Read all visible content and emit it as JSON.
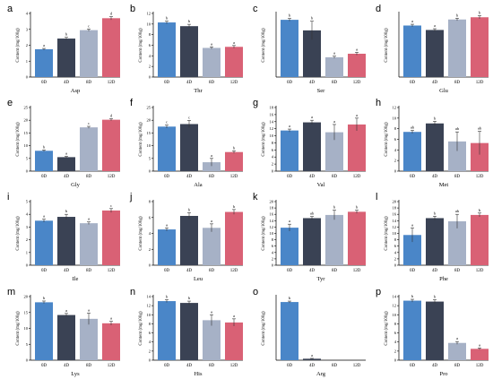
{
  "figure": {
    "colors": {
      "0D": "#4a86c8",
      "4D": "#3a4254",
      "8D": "#a6b1c6",
      "12D": "#d96175",
      "axis": "#000000",
      "errorbar": "#333333"
    }
  },
  "chart_data": [
    {
      "panel": "a",
      "type": "bar",
      "categories": [
        "0D",
        "4D",
        "8D",
        "12D"
      ],
      "values": [
        1.75,
        2.42,
        2.95,
        3.7
      ],
      "errors": [
        0.05,
        0.08,
        0.07,
        0.1
      ],
      "labels": [
        "a",
        "b",
        "c",
        "d"
      ],
      "xlabel": "Asp",
      "ylabel": "Content (mg/100g)",
      "ylim": [
        0,
        4
      ],
      "yticks": [
        "0",
        "1",
        "2",
        "3",
        "4"
      ]
    },
    {
      "panel": "b",
      "type": "bar",
      "categories": [
        "0D",
        "4D",
        "8D",
        "12D"
      ],
      "values": [
        10.3,
        9.6,
        5.5,
        5.7
      ],
      "errors": [
        0.25,
        0.35,
        0.2,
        0.25
      ],
      "labels": [
        "b",
        "b",
        "a",
        "a"
      ],
      "xlabel": "Thr",
      "ylabel": "Content (mg/100g)",
      "ylim": [
        0,
        12
      ],
      "yticks": [
        "0",
        "2",
        "4",
        "6",
        "8",
        "10",
        "12"
      ]
    },
    {
      "panel": "c",
      "type": "bar",
      "categories": [
        "0D",
        "4D",
        "8D",
        "12D"
      ],
      "values": [
        8.1,
        6.6,
        2.8,
        3.3
      ],
      "errors": [
        0.2,
        1.3,
        0.15,
        0.2
      ],
      "labels": [
        "b",
        "b",
        "a",
        "a"
      ],
      "xlabel": "Ser",
      "ylabel": "Content (mg/100g)",
      "ylim": [
        0,
        9
      ],
      "yticks": []
    },
    {
      "panel": "d",
      "type": "bar",
      "categories": [
        "0D",
        "4D",
        "8D",
        "12D"
      ],
      "values": [
        16.2,
        14.8,
        18.1,
        18.8
      ],
      "errors": [
        0.4,
        0.4,
        0.4,
        0.5
      ],
      "labels": [
        "a",
        "a",
        "b",
        "b"
      ],
      "xlabel": "Glu",
      "ylabel": "Content (mg/100g)",
      "ylim": [
        0,
        20
      ],
      "yticks": []
    },
    {
      "panel": "e",
      "type": "bar",
      "categories": [
        "0D",
        "4D",
        "8D",
        "12D"
      ],
      "values": [
        8.0,
        5.5,
        17.2,
        20.2
      ],
      "errors": [
        0.3,
        0.3,
        0.4,
        0.4
      ],
      "labels": [
        "b",
        "a",
        "c",
        "d"
      ],
      "xlabel": "Gly",
      "ylabel": "Content (mg/100g)",
      "ylim": [
        0,
        25
      ],
      "yticks": [
        "0",
        "5",
        "10",
        "15",
        "20",
        "25"
      ]
    },
    {
      "panel": "f",
      "type": "bar",
      "categories": [
        "0D",
        "4D",
        "8D",
        "12D"
      ],
      "values": [
        17.5,
        18.5,
        3.5,
        7.5
      ],
      "errors": [
        0.6,
        1.4,
        1.5,
        0.5
      ],
      "labels": [
        "c",
        "c",
        "a",
        "b"
      ],
      "xlabel": "Ala",
      "ylabel": "Content (mg/100g)",
      "ylim": [
        0,
        25
      ],
      "yticks": [
        "0",
        "5",
        "10",
        "15",
        "20",
        "25"
      ]
    },
    {
      "panel": "g",
      "type": "bar",
      "categories": [
        "0D",
        "4D",
        "8D",
        "12D"
      ],
      "values": [
        11.5,
        13.8,
        11.0,
        13.2
      ],
      "errors": [
        0.4,
        0.6,
        2.2,
        1.8
      ],
      "labels": [
        "a",
        "a",
        "a",
        "a"
      ],
      "xlabel": "Val",
      "ylabel": "Content (mg/100g)",
      "ylim": [
        0,
        18
      ],
      "yticks": [
        "0",
        "2",
        "4",
        "6",
        "8",
        "10",
        "12",
        "14",
        "16",
        "18"
      ]
    },
    {
      "panel": "h",
      "type": "bar",
      "categories": [
        "0D",
        "4D",
        "8D",
        "12D"
      ],
      "values": [
        7.4,
        9.0,
        5.6,
        5.3
      ],
      "errors": [
        0.3,
        0.4,
        1.8,
        2.2
      ],
      "labels": [
        "ab",
        "b",
        "ab",
        "ab"
      ],
      "xlabel": "Met",
      "ylabel": "Content (mg/100g)",
      "ylim": [
        0,
        12
      ],
      "yticks": [
        "0",
        "2",
        "4",
        "6",
        "8",
        "10",
        "12"
      ]
    },
    {
      "panel": "i",
      "type": "bar",
      "categories": [
        "0D",
        "4D",
        "8D",
        "12D"
      ],
      "values": [
        3.5,
        3.8,
        3.3,
        4.3
      ],
      "errors": [
        0.12,
        0.2,
        0.1,
        0.15
      ],
      "labels": [
        "a",
        "b",
        "a",
        "c"
      ],
      "xlabel": "Ile",
      "ylabel": "Content (mg/100g)",
      "ylim": [
        0,
        5
      ],
      "yticks": [
        "0",
        "1",
        "2",
        "3",
        "4",
        "5"
      ]
    },
    {
      "panel": "j",
      "type": "bar",
      "categories": [
        "0D",
        "4D",
        "8D",
        "12D"
      ],
      "values": [
        4.5,
        6.2,
        4.7,
        6.7
      ],
      "errors": [
        0.2,
        0.4,
        0.5,
        0.3
      ],
      "labels": [
        "a",
        "b",
        "a",
        "b"
      ],
      "xlabel": "Leu",
      "ylabel": "Content (mg/100g)",
      "ylim": [
        0,
        8
      ],
      "yticks": [
        "0",
        "2",
        "4",
        "6",
        "8"
      ]
    },
    {
      "panel": "k",
      "type": "bar",
      "categories": [
        "0D",
        "4D",
        "8D",
        "12D"
      ],
      "values": [
        11.8,
        14.8,
        15.8,
        16.8
      ],
      "errors": [
        1.1,
        0.5,
        1.5,
        0.5
      ],
      "labels": [
        "a",
        "ab",
        "b",
        "b"
      ],
      "xlabel": "Tyr",
      "ylabel": "Content (mg/100g)",
      "ylim": [
        0,
        20
      ],
      "yticks": [
        "0",
        "2",
        "4",
        "6",
        "8",
        "10",
        "12",
        "14",
        "16",
        "18",
        "20"
      ]
    },
    {
      "panel": "l",
      "type": "bar",
      "categories": [
        "0D",
        "4D",
        "8D",
        "12D"
      ],
      "values": [
        9.5,
        14.8,
        13.8,
        15.8
      ],
      "errors": [
        2.2,
        0.6,
        2.2,
        0.6
      ],
      "labels": [
        "a",
        "b",
        "ab",
        "b"
      ],
      "xlabel": "Phe",
      "ylabel": "Content (mg/100g)",
      "ylim": [
        0,
        20
      ],
      "yticks": [
        "0",
        "2",
        "4",
        "6",
        "8",
        "10",
        "12",
        "14",
        "16",
        "18",
        "20"
      ]
    },
    {
      "panel": "m",
      "type": "bar",
      "categories": [
        "0D",
        "4D",
        "8D",
        "12D"
      ],
      "values": [
        18.2,
        14.2,
        13.0,
        11.6
      ],
      "errors": [
        0.4,
        0.5,
        1.8,
        0.6
      ],
      "labels": [
        "b",
        "a",
        "a",
        "a"
      ],
      "xlabel": "Lys",
      "ylabel": "Content (mg/100g)",
      "ylim": [
        0,
        20
      ],
      "yticks": [
        "0",
        "5",
        "10",
        "15",
        "20"
      ]
    },
    {
      "panel": "n",
      "type": "bar",
      "categories": [
        "0D",
        "4D",
        "8D",
        "12D"
      ],
      "values": [
        13.0,
        12.6,
        8.8,
        8.3
      ],
      "errors": [
        0.3,
        0.4,
        1.2,
        0.8
      ],
      "labels": [
        "b",
        "b",
        "a",
        "a"
      ],
      "xlabel": "His",
      "ylabel": "Content (mg/100g)",
      "ylim": [
        0,
        14
      ],
      "yticks": [
        "0",
        "2",
        "4",
        "6",
        "8",
        "10",
        "12",
        "14"
      ]
    },
    {
      "panel": "o",
      "type": "bar",
      "categories": [
        "0D",
        "4D",
        "8D",
        "12D"
      ],
      "values": [
        3.2,
        0.08,
        0,
        0
      ],
      "errors": [
        0.05,
        0.02,
        0,
        0
      ],
      "labels": [
        "b",
        "a",
        "",
        ""
      ],
      "xlabel": "Arg",
      "ylabel": "Content (mg/100g)",
      "ylim": [
        0,
        3.5
      ],
      "yticks": []
    },
    {
      "panel": "p",
      "type": "bar",
      "categories": [
        "0D",
        "4D",
        "8D",
        "12D"
      ],
      "values": [
        13.1,
        12.9,
        3.8,
        2.5
      ],
      "errors": [
        0.3,
        0.4,
        0.3,
        0.2
      ],
      "labels": [
        "b",
        "b",
        "a",
        "a"
      ],
      "xlabel": "Pro",
      "ylabel": "Content (mg/100g)",
      "ylim": [
        0,
        14
      ],
      "yticks": [
        "0",
        "2",
        "4",
        "6",
        "8",
        "10",
        "12",
        "14"
      ]
    }
  ]
}
